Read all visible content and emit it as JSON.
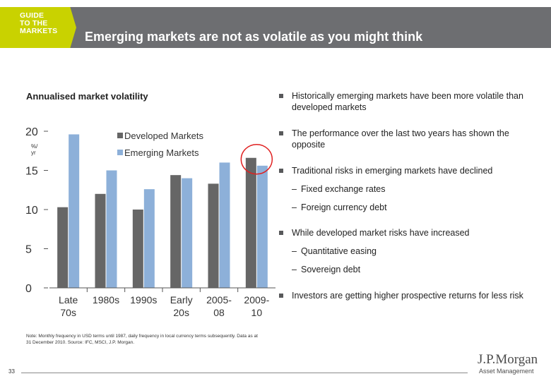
{
  "header": {
    "guide_lines": [
      "GUIDE",
      "TO THE",
      "MARKETS"
    ],
    "title": "Emerging markets are not as volatile as you might think"
  },
  "chart_data": {
    "type": "bar",
    "title": "Annualised market volatility",
    "ylabel": "%/ yr",
    "ylim": [
      0,
      20
    ],
    "yticks": [
      0,
      5,
      10,
      15,
      20
    ],
    "categories": [
      [
        "Late",
        "70s"
      ],
      [
        "1980s",
        ""
      ],
      [
        "1990s",
        ""
      ],
      [
        "Early",
        "20s"
      ],
      [
        "2005-",
        "08"
      ],
      [
        "2009-",
        "10"
      ]
    ],
    "series": [
      {
        "name": "Developed Markets",
        "color": "#666666",
        "values": [
          10.3,
          12.0,
          10.0,
          14.4,
          13.3,
          16.6
        ]
      },
      {
        "name": "Emerging Markets",
        "color": "#8db0d9",
        "values": [
          19.6,
          15.0,
          12.6,
          14.0,
          16.0,
          15.6
        ]
      }
    ],
    "legend": "top-right",
    "highlight": "2009-10 circled in red"
  },
  "bullets": [
    {
      "text": "Historically emerging markets have been more volatile than developed markets",
      "subs": []
    },
    {
      "text": "The performance over the last two years has shown the opposite",
      "subs": []
    },
    {
      "text": "Traditional risks in emerging markets have declined",
      "subs": [
        "Fixed exchange rates",
        "Foreign currency debt"
      ]
    },
    {
      "text": "While developed market risks have increased",
      "subs": [
        "Quantitative easing",
        "Sovereign debt"
      ]
    },
    {
      "text": "Investors are getting higher prospective returns for less risk",
      "subs": []
    }
  ],
  "footer": {
    "note": "Note: Monthly frequency in USD terms until 1987, daily frequency in local currency terms subsequently. Data as at 31 December 2010. Source: IFC, MSCI, J.P. Morgan.",
    "page_number": "33",
    "brand": "J.P.Morgan",
    "brand_sub": "Asset Management"
  },
  "colors": {
    "header_bg": "#6d6e71",
    "guide_bg": "#c9d200",
    "highlight_circle": "#e02020"
  }
}
